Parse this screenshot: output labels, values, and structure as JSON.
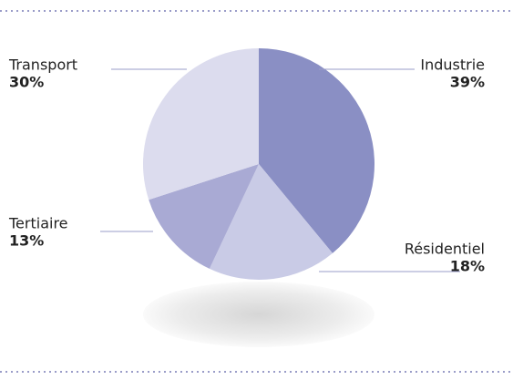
{
  "chart_data": {
    "type": "pie",
    "categories": [
      "Industrie",
      "Résidentiel",
      "Tertiaire",
      "Transport"
    ],
    "values": [
      39,
      18,
      13,
      30
    ],
    "value_labels": [
      "39%",
      "18%",
      "13%",
      "30%"
    ],
    "colors": [
      "#8a8fc4",
      "#c9cbe6",
      "#a9aad4",
      "#dcdcee"
    ],
    "start_angle": 90,
    "direction": "clockwise"
  }
}
